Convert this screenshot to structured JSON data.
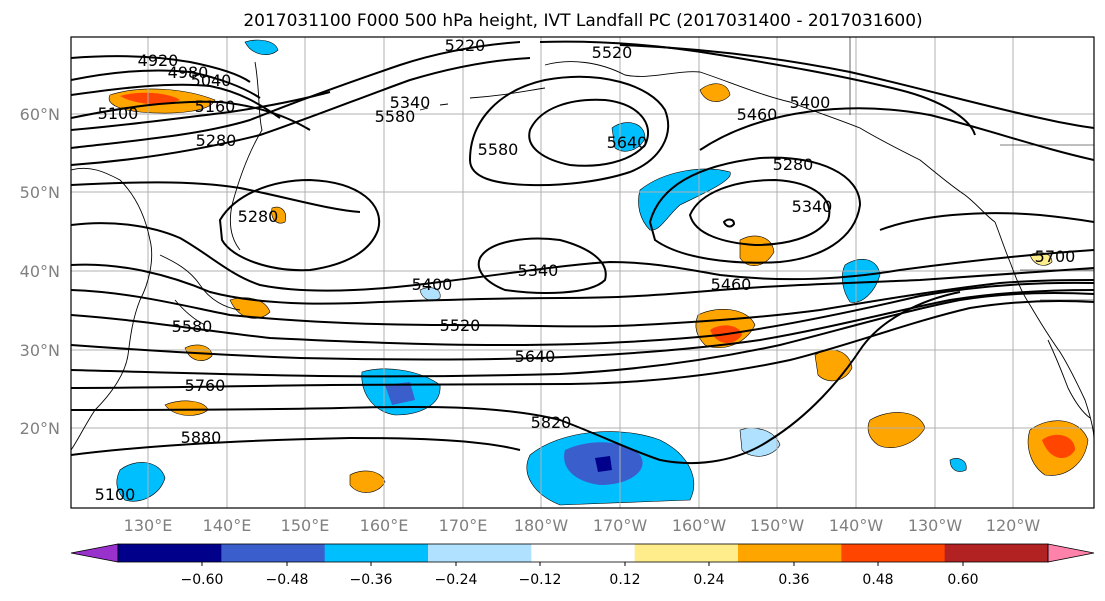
{
  "title": "2017031100 F000 500 hPa height, IVT Landfall PC (2017031400 - 2017031600)",
  "map": {
    "lon_labels": [
      "130°E",
      "140°E",
      "150°E",
      "160°E",
      "170°E",
      "180°W",
      "170°W",
      "160°W",
      "150°W",
      "140°W",
      "130°W",
      "120°W"
    ],
    "lat_labels": [
      "60°N",
      "50°N",
      "40°N",
      "30°N",
      "20°N"
    ],
    "contour_labels": [
      "4920",
      "4980",
      "5040",
      "5100",
      "5160",
      "5220",
      "5280",
      "5340",
      "5400",
      "5460",
      "5520",
      "5580",
      "5640",
      "5700",
      "5760",
      "5820",
      "5880",
      "5100",
      "5280",
      "5340",
      "5580",
      "5520",
      "5640",
      "5280",
      "5340",
      "5400",
      "5460",
      "5580"
    ]
  },
  "colorbar": {
    "colors": [
      "#9932cc",
      "#00008b",
      "#3a5fcd",
      "#00bfff",
      "#b0e2ff",
      "#ffffff",
      "#ffec8b",
      "#ffa500",
      "#ff4500",
      "#b22222",
      "#ff82ab"
    ],
    "tick_labels": [
      "−0.60",
      "−0.48",
      "−0.36",
      "−0.24",
      "−0.12",
      "0.12",
      "0.24",
      "0.36",
      "0.48",
      "0.60"
    ]
  },
  "colors": {
    "gridline": "#b0b0b0",
    "contour": "#000000",
    "coast": "#000000"
  }
}
